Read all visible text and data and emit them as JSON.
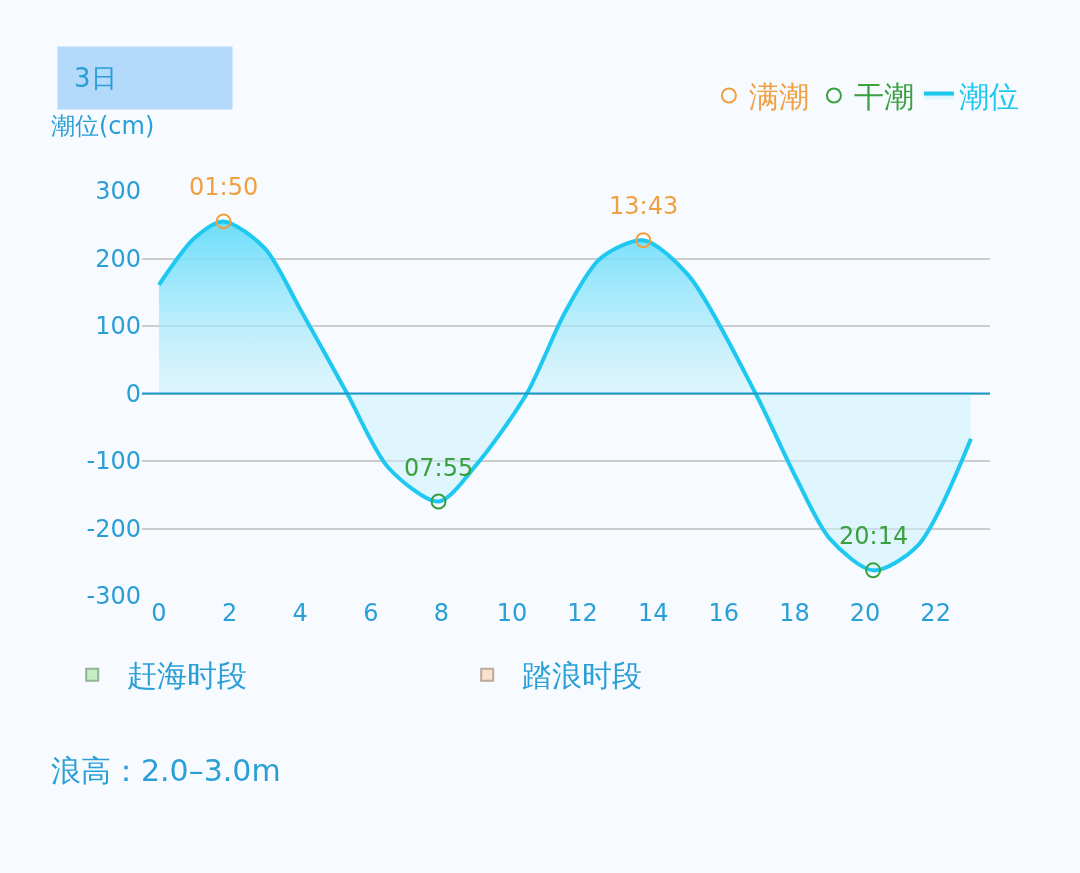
{
  "chart_data": {
    "type": "area",
    "ylabel": "潮位(cm)",
    "x": [
      0,
      1,
      1.83,
      3,
      4,
      5.33,
      6.5,
      7.92,
      9,
      10.42,
      11.5,
      12.5,
      13.72,
      15,
      16.9,
      18,
      19,
      20.23,
      21.5,
      23
    ],
    "series": [
      {
        "name": "满潮",
        "type": "scatter",
        "marker": "circle",
        "color": "#f0a040",
        "x": [
          1.83,
          13.72
        ],
        "values": [
          255,
          227
        ]
      },
      {
        "name": "干潮",
        "type": "scatter",
        "marker": "circle",
        "color": "#3aa040",
        "x": [
          7.92,
          20.23
        ],
        "values": [
          -160,
          -262
        ]
      },
      {
        "name": "潮位",
        "color": "#1ec8f0",
        "values": [
          161,
          230,
          255,
          215,
          125,
          0,
          -110,
          -160,
          -105,
          0,
          120,
          200,
          227,
          175,
          0,
          -120,
          -215,
          -262,
          -225,
          -67
        ]
      },
      {
        "name": "赶海时段",
        "type": "bar",
        "color": "#c4efc4",
        "values": [
          null,
          null,
          null,
          null,
          null,
          null,
          null,
          null,
          null,
          null,
          null,
          null,
          null,
          null,
          null,
          null,
          null,
          null,
          null,
          null
        ]
      },
      {
        "name": "踏浪时段",
        "type": "bar",
        "color": "#fbe2cf",
        "values": [
          null,
          null,
          null,
          null,
          null,
          null,
          null,
          null,
          null,
          null,
          null,
          null,
          null,
          null,
          null,
          null,
          null,
          null,
          null,
          null
        ]
      }
    ],
    "xlim": [
      -0.48,
      23.54
    ],
    "xticks": [
      0,
      2,
      4,
      6,
      8,
      10,
      12,
      14,
      16,
      18,
      20,
      22
    ],
    "ylim": [
      -300,
      300
    ],
    "yticks": [
      -300,
      -200,
      -100,
      0,
      100,
      200,
      300
    ],
    "ref_lines": [
      {
        "axis": "y",
        "value": 0,
        "color": "#1a9ac8"
      }
    ],
    "grid": "y",
    "legend": "top right",
    "annotations": [
      "3日",
      {
        "text": "01:50",
        "x": 1.83,
        "y": 255
      },
      {
        "text": "07:55",
        "x": 7.92,
        "y": -160
      },
      {
        "text": "13:43",
        "x": 13.72,
        "y": 227
      },
      {
        "text": "20:14",
        "x": 20.23,
        "y": -262
      },
      "浪高：2.0–3.0m"
    ]
  }
}
